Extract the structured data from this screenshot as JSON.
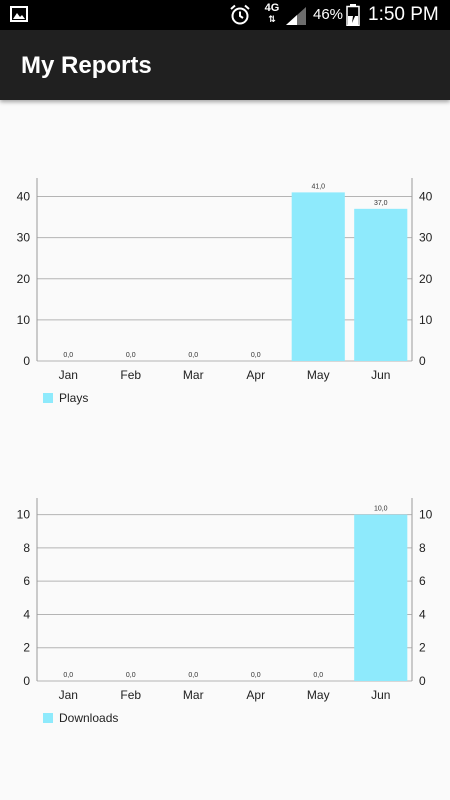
{
  "status_bar": {
    "network": "4G",
    "battery_percent": "46%",
    "time": "1:50 PM",
    "icons": [
      "gallery-icon",
      "alarm-icon",
      "signal-icon",
      "battery-icon"
    ]
  },
  "app_bar": {
    "title": "My Reports"
  },
  "colors": {
    "bar": "#8eeafc",
    "grid": "#b4b4b4",
    "axis": "#9a9a9a",
    "app_bar": "#202020"
  },
  "chart_data": [
    {
      "type": "bar",
      "categories": [
        "Jan",
        "Feb",
        "Mar",
        "Apr",
        "May",
        "Jun"
      ],
      "series": [
        {
          "name": "Plays",
          "values": [
            0,
            0,
            0,
            0,
            41,
            37
          ]
        }
      ],
      "value_labels": [
        "0,0",
        "0,0",
        "0,0",
        "0,0",
        "41,0",
        "37,0"
      ],
      "y_ticks": [
        0,
        10,
        20,
        30,
        40
      ],
      "ylim": [
        0,
        44.5
      ],
      "dual_y_axis": true,
      "grid": true,
      "legend": "bottom-left"
    },
    {
      "type": "bar",
      "categories": [
        "Jan",
        "Feb",
        "Mar",
        "Apr",
        "May",
        "Jun"
      ],
      "series": [
        {
          "name": "Downloads",
          "values": [
            0,
            0,
            0,
            0,
            0,
            10
          ]
        }
      ],
      "value_labels": [
        "0,0",
        "0,0",
        "0,0",
        "0,0",
        "0,0",
        "10,0"
      ],
      "y_ticks": [
        0,
        2,
        4,
        6,
        8,
        10
      ],
      "ylim": [
        0,
        11
      ],
      "dual_y_axis": true,
      "grid": true,
      "legend": "bottom-left"
    }
  ]
}
